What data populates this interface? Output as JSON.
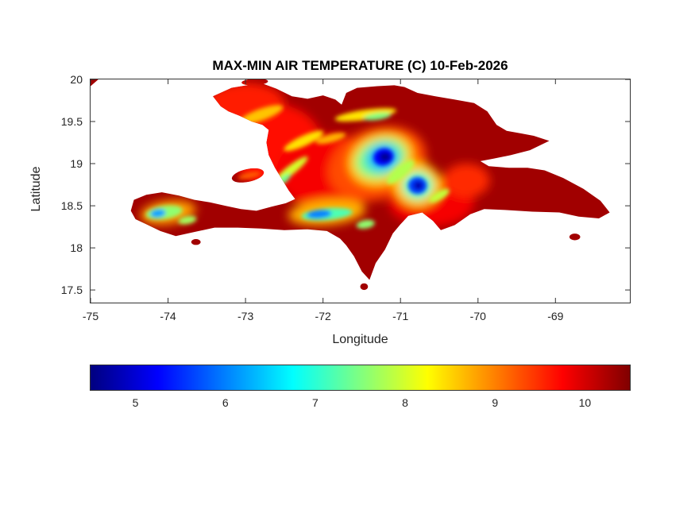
{
  "chart_data": {
    "type": "heatmap",
    "title": "MAX-MIN AIR TEMPERATURE (C) 10-Feb-2026",
    "xlabel": "Longitude",
    "ylabel": "Latitude",
    "units": "C",
    "xlim": [
      -75,
      -68.04
    ],
    "ylim": [
      17.35,
      20.0
    ],
    "xticks": [
      -75,
      -74,
      -73,
      -72,
      -71,
      -70,
      -69
    ],
    "yticks": [
      17.5,
      18,
      18.5,
      19,
      19.5,
      20
    ],
    "grid": false,
    "colorbar": {
      "orientation": "horizontal",
      "colormap": "jet",
      "vmin": 4.5,
      "vmax": 10.5,
      "ticks": [
        5,
        6,
        7,
        8,
        9,
        10
      ]
    },
    "base_value": 10.3,
    "island_outline": [
      [
        -73.42,
        19.8
      ],
      [
        -73.18,
        19.9
      ],
      [
        -72.98,
        19.93
      ],
      [
        -72.78,
        19.95
      ],
      [
        -72.6,
        19.89
      ],
      [
        -72.4,
        19.8
      ],
      [
        -72.2,
        19.77
      ],
      [
        -72.0,
        19.81
      ],
      [
        -71.84,
        19.76
      ],
      [
        -71.76,
        19.7
      ],
      [
        -71.7,
        19.84
      ],
      [
        -71.56,
        19.9
      ],
      [
        -71.3,
        19.92
      ],
      [
        -71.08,
        19.93
      ],
      [
        -70.95,
        19.91
      ],
      [
        -70.78,
        19.84
      ],
      [
        -70.55,
        19.8
      ],
      [
        -70.3,
        19.76
      ],
      [
        -70.05,
        19.72
      ],
      [
        -69.88,
        19.62
      ],
      [
        -69.76,
        19.46
      ],
      [
        -69.63,
        19.39
      ],
      [
        -69.45,
        19.36
      ],
      [
        -69.28,
        19.33
      ],
      [
        -69.08,
        19.27
      ],
      [
        -69.33,
        19.16
      ],
      [
        -69.58,
        19.1
      ],
      [
        -69.8,
        19.06
      ],
      [
        -69.97,
        19.03
      ],
      [
        -69.86,
        18.97
      ],
      [
        -69.6,
        18.95
      ],
      [
        -69.36,
        18.95
      ],
      [
        -69.14,
        18.92
      ],
      [
        -68.9,
        18.83
      ],
      [
        -68.64,
        18.7
      ],
      [
        -68.42,
        18.56
      ],
      [
        -68.3,
        18.42
      ],
      [
        -68.44,
        18.35
      ],
      [
        -68.7,
        18.37
      ],
      [
        -68.95,
        18.42
      ],
      [
        -69.3,
        18.43
      ],
      [
        -69.65,
        18.45
      ],
      [
        -69.92,
        18.46
      ],
      [
        -70.1,
        18.4
      ],
      [
        -70.3,
        18.27
      ],
      [
        -70.48,
        18.21
      ],
      [
        -70.58,
        18.32
      ],
      [
        -70.72,
        18.42
      ],
      [
        -70.9,
        18.38
      ],
      [
        -71.0,
        18.28
      ],
      [
        -71.1,
        18.17
      ],
      [
        -71.2,
        17.98
      ],
      [
        -71.32,
        17.82
      ],
      [
        -71.4,
        17.62
      ],
      [
        -71.5,
        17.72
      ],
      [
        -71.6,
        17.9
      ],
      [
        -71.7,
        18.03
      ],
      [
        -71.78,
        18.11
      ],
      [
        -71.95,
        18.2
      ],
      [
        -72.2,
        18.22
      ],
      [
        -72.5,
        18.21
      ],
      [
        -72.8,
        18.23
      ],
      [
        -73.1,
        18.24
      ],
      [
        -73.4,
        18.24
      ],
      [
        -73.65,
        18.19
      ],
      [
        -73.9,
        18.14
      ],
      [
        -74.1,
        18.2
      ],
      [
        -74.28,
        18.28
      ],
      [
        -74.42,
        18.34
      ],
      [
        -74.48,
        18.44
      ],
      [
        -74.44,
        18.57
      ],
      [
        -74.28,
        18.63
      ],
      [
        -74.08,
        18.66
      ],
      [
        -73.86,
        18.62
      ],
      [
        -73.66,
        18.57
      ],
      [
        -73.46,
        18.54
      ],
      [
        -73.26,
        18.5
      ],
      [
        -73.06,
        18.46
      ],
      [
        -72.86,
        18.44
      ],
      [
        -72.66,
        18.49
      ],
      [
        -72.48,
        18.53
      ],
      [
        -72.36,
        18.58
      ],
      [
        -72.44,
        18.68
      ],
      [
        -72.52,
        18.8
      ],
      [
        -72.62,
        18.95
      ],
      [
        -72.7,
        19.1
      ],
      [
        -72.73,
        19.25
      ],
      [
        -72.7,
        19.4
      ],
      [
        -72.78,
        19.46
      ],
      [
        -72.92,
        19.5
      ],
      [
        -73.08,
        19.57
      ],
      [
        -73.22,
        19.62
      ],
      [
        -73.32,
        19.68
      ]
    ],
    "islets": [
      {
        "name": "ile-de-la-gonave",
        "type": "ellipse",
        "lon": -72.97,
        "lat": 18.86,
        "rx": 0.21,
        "ry": 0.075,
        "rot": -12
      },
      {
        "name": "ile-de-la-tortue",
        "type": "ellipse",
        "lon": -72.88,
        "lat": 19.97,
        "rx": 0.17,
        "ry": 0.04,
        "rot": -3
      },
      {
        "name": "isla-saona",
        "type": "ellipse",
        "lon": -68.75,
        "lat": 18.13,
        "rx": 0.07,
        "ry": 0.04,
        "rot": 0
      },
      {
        "name": "ile-a-vache",
        "type": "ellipse",
        "lon": -73.64,
        "lat": 18.07,
        "rx": 0.06,
        "ry": 0.035,
        "rot": 0
      },
      {
        "name": "isla-beata",
        "type": "ellipse",
        "lon": -71.47,
        "lat": 17.54,
        "rx": 0.05,
        "ry": 0.04,
        "rot": 0
      },
      {
        "name": "cuba-east-tip",
        "type": "polygon",
        "points": [
          [
            -75.0,
            20.0
          ],
          [
            -74.9,
            20.0
          ],
          [
            -75.0,
            19.92
          ]
        ]
      }
    ],
    "features": [
      {
        "name": "haiti-west-warm",
        "layer": "smooth",
        "lon": -72.6,
        "lat": 19.2,
        "rx": 0.6,
        "ry": 0.5,
        "rot": 0,
        "value": 9.7
      },
      {
        "name": "nw-peninsula-warm",
        "layer": "smooth",
        "lon": -73.0,
        "lat": 19.72,
        "rx": 0.5,
        "ry": 0.24,
        "rot": 0,
        "value": 9.6
      },
      {
        "name": "border-central-warm",
        "layer": "smooth",
        "lon": -71.9,
        "lat": 18.9,
        "rx": 0.7,
        "ry": 0.45,
        "rot": 0,
        "value": 9.8
      },
      {
        "name": "south-central-warm",
        "layer": "smooth",
        "lon": -70.6,
        "lat": 18.55,
        "rx": 0.55,
        "ry": 0.3,
        "rot": 0,
        "value": 9.8
      },
      {
        "name": "samana-south-warm",
        "layer": "smooth",
        "lon": -70.15,
        "lat": 18.8,
        "rx": 0.3,
        "ry": 0.2,
        "rot": 0,
        "value": 9.5
      },
      {
        "name": "cordillera-halo",
        "layer": "smooth",
        "lon": -71.3,
        "lat": 19.0,
        "rx": 0.65,
        "ry": 0.42,
        "rot": -20,
        "value": 9.3
      },
      {
        "name": "cordillera-yellow",
        "layer": "smooth",
        "lon": -71.25,
        "lat": 19.05,
        "rx": 0.42,
        "ry": 0.3,
        "rot": -20,
        "value": 8.5
      },
      {
        "name": "cordillera-green",
        "layer": "smooth",
        "lon": -71.25,
        "lat": 19.06,
        "rx": 0.33,
        "ry": 0.22,
        "rot": -20,
        "value": 7.4
      },
      {
        "name": "cordillera-cyan",
        "layer": "smooth",
        "lon": -71.23,
        "lat": 19.07,
        "rx": 0.21,
        "ry": 0.16,
        "rot": -15,
        "value": 6.3
      },
      {
        "name": "selle-yellow-halo",
        "layer": "smooth",
        "lon": -71.95,
        "lat": 18.42,
        "rx": 0.5,
        "ry": 0.15,
        "rot": -5,
        "value": 8.7
      },
      {
        "name": "hotte-orange-halo",
        "layer": "smooth",
        "lon": -74.0,
        "lat": 18.42,
        "rx": 0.36,
        "ry": 0.14,
        "rot": -8,
        "value": 8.8
      },
      {
        "name": "second-peak-halo",
        "layer": "smooth",
        "lon": -70.78,
        "lat": 18.75,
        "rx": 0.3,
        "ry": 0.26,
        "rot": 0,
        "value": 8.5
      },
      {
        "name": "second-peak-green",
        "layer": "smooth",
        "lon": -70.78,
        "lat": 18.74,
        "rx": 0.19,
        "ry": 0.16,
        "rot": 0,
        "value": 7.0
      },
      {
        "name": "cordillera-blue",
        "layer": "detail",
        "lon": -71.22,
        "lat": 19.08,
        "rx": 0.13,
        "ry": 0.1,
        "rot": -15,
        "value": 5.2
      },
      {
        "name": "cordillera-core",
        "layer": "detail",
        "lon": -71.2,
        "lat": 19.08,
        "rx": 0.07,
        "ry": 0.05,
        "rot": 0,
        "value": 4.6
      },
      {
        "name": "second-peak-blue",
        "layer": "detail",
        "lon": -70.78,
        "lat": 18.74,
        "rx": 0.12,
        "ry": 0.1,
        "rot": 0,
        "value": 5.6
      },
      {
        "name": "second-peak-core",
        "layer": "detail",
        "lon": -70.77,
        "lat": 18.74,
        "rx": 0.06,
        "ry": 0.05,
        "rot": 0,
        "value": 4.8
      },
      {
        "name": "bridge-streak",
        "layer": "detail",
        "lon": -71.0,
        "lat": 18.9,
        "rx": 0.22,
        "ry": 0.07,
        "rot": -40,
        "value": 7.8
      },
      {
        "name": "selle-green-streak",
        "layer": "detail",
        "lon": -71.95,
        "lat": 18.4,
        "rx": 0.33,
        "ry": 0.07,
        "rot": -5,
        "value": 7.2
      },
      {
        "name": "selle-cyan",
        "layer": "detail",
        "lon": -72.05,
        "lat": 18.4,
        "rx": 0.16,
        "ry": 0.05,
        "rot": -5,
        "value": 6.0
      },
      {
        "name": "bahoruco-green",
        "layer": "detail",
        "lon": -71.45,
        "lat": 18.28,
        "rx": 0.12,
        "ry": 0.05,
        "rot": -10,
        "value": 7.6
      },
      {
        "name": "hotte-green-streak",
        "layer": "detail",
        "lon": -74.05,
        "lat": 18.42,
        "rx": 0.24,
        "ry": 0.08,
        "rot": -8,
        "value": 7.6
      },
      {
        "name": "hotte-cyan",
        "layer": "detail",
        "lon": -74.13,
        "lat": 18.41,
        "rx": 0.1,
        "ry": 0.05,
        "rot": -8,
        "value": 6.2
      },
      {
        "name": "cayes-green",
        "layer": "detail",
        "lon": -73.75,
        "lat": 18.33,
        "rx": 0.12,
        "ry": 0.045,
        "rot": -10,
        "value": 7.7
      },
      {
        "name": "matheux-streak",
        "layer": "detail",
        "lon": -72.42,
        "lat": 18.92,
        "rx": 0.28,
        "ry": 0.055,
        "rot": -38,
        "value": 8.0
      },
      {
        "name": "matheux-green",
        "layer": "detail",
        "lon": -72.52,
        "lat": 18.8,
        "rx": 0.13,
        "ry": 0.04,
        "rot": -38,
        "value": 7.4
      },
      {
        "name": "noires-streak",
        "layer": "detail",
        "lon": -72.25,
        "lat": 19.27,
        "rx": 0.28,
        "ry": 0.06,
        "rot": -25,
        "value": 8.4
      },
      {
        "name": "plateau-streak",
        "layer": "detail",
        "lon": -71.9,
        "lat": 19.3,
        "rx": 0.2,
        "ry": 0.05,
        "rot": -15,
        "value": 8.7
      },
      {
        "name": "nord-streak",
        "layer": "detail",
        "lon": -72.8,
        "lat": 19.58,
        "rx": 0.3,
        "ry": 0.07,
        "rot": -20,
        "value": 8.6
      },
      {
        "name": "septentrional-streak",
        "layer": "detail",
        "lon": -71.45,
        "lat": 19.58,
        "rx": 0.4,
        "ry": 0.06,
        "rot": -8,
        "value": 8.4
      },
      {
        "name": "septentrional-green",
        "layer": "detail",
        "lon": -71.3,
        "lat": 19.56,
        "rx": 0.18,
        "ry": 0.04,
        "rot": -8,
        "value": 7.5
      },
      {
        "name": "ozama-streak",
        "layer": "detail",
        "lon": -70.5,
        "lat": 18.62,
        "rx": 0.15,
        "ry": 0.05,
        "rot": -30,
        "value": 7.9
      },
      {
        "name": "gonave-streak",
        "layer": "detail",
        "lon": -72.95,
        "lat": 18.86,
        "rx": 0.15,
        "ry": 0.035,
        "rot": -12,
        "value": 9.2
      }
    ]
  }
}
